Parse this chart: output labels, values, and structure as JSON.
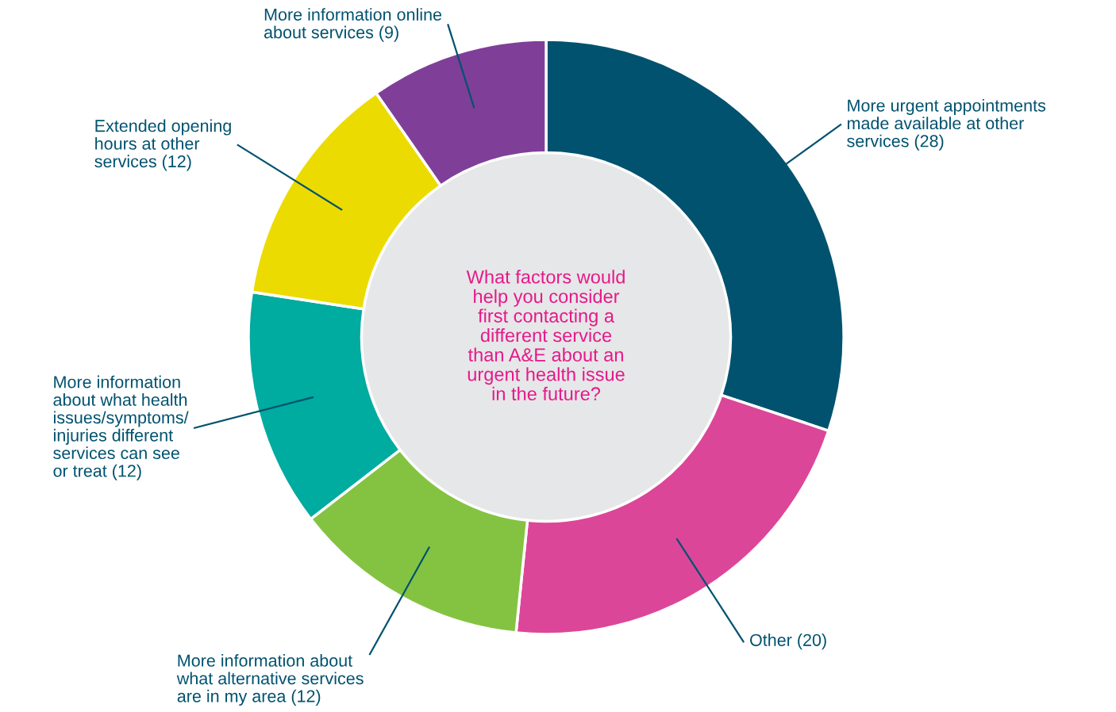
{
  "chart_data": {
    "type": "donut",
    "title": "What factors would\nhelp you consider\nfirst contacting a\ndifferent service\nthan A&E about an\nurgent health issue\nin the future?",
    "categories": [
      "More urgent appointments\nmade available at other\nservices (28)",
      "Other (20)",
      "More information about\nwhat alternative services\nare in my area (12)",
      "More information\nabout what health\nissues/symptoms/\ninjuries different\nservices can see\nor treat (12)",
      "Extended opening\nhours at other\nservices (12)",
      "More information online\nabout services (9)"
    ],
    "values": [
      28,
      20,
      12,
      12,
      12,
      9
    ],
    "colors": [
      "#00526f",
      "#dc4698",
      "#84c341",
      "#00ab9f",
      "#ecdb00",
      "#7f3f98"
    ],
    "legend": false
  }
}
